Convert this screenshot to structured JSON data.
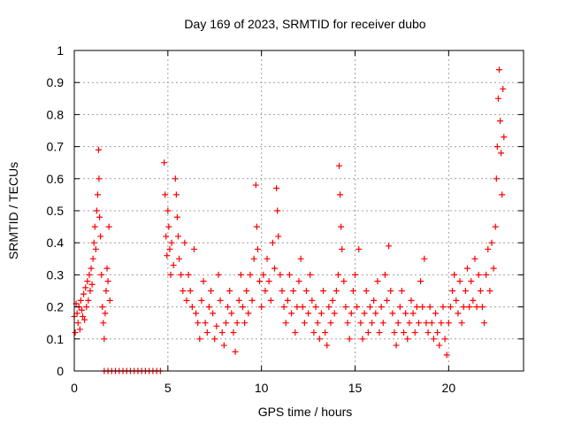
{
  "chart_data": {
    "type": "scatter",
    "title": "Day 169 of 2023, SRMTID for receiver dubo",
    "xlabel": "GPS time / hours",
    "ylabel": "SRMTID / TECUs",
    "xlim": [
      0,
      24
    ],
    "ylim": [
      0,
      1
    ],
    "xticks": [
      0,
      5,
      10,
      15,
      20
    ],
    "yticks": [
      0,
      0.1,
      0.2,
      0.3,
      0.4,
      0.5,
      0.6,
      0.7,
      0.8,
      0.9,
      1
    ],
    "xtick_labels": [
      "0",
      "5",
      "10",
      "15",
      "20"
    ],
    "ytick_labels": [
      "0",
      "0.1",
      "0.2",
      "0.3",
      "0.4",
      "0.5",
      "0.6",
      "0.7",
      "0.8",
      "0.9",
      "1"
    ],
    "grid": true,
    "marker": "+",
    "series": [
      {
        "name": "SRMTID",
        "color": "#ff0000",
        "points": [
          [
            0.0,
            0.17
          ],
          [
            0.05,
            0.12
          ],
          [
            0.1,
            0.21
          ],
          [
            0.15,
            0.18
          ],
          [
            0.2,
            0.15
          ],
          [
            0.25,
            0.2
          ],
          [
            0.3,
            0.13
          ],
          [
            0.35,
            0.22
          ],
          [
            0.4,
            0.19
          ],
          [
            0.45,
            0.17
          ],
          [
            0.5,
            0.24
          ],
          [
            0.55,
            0.16
          ],
          [
            0.6,
            0.26
          ],
          [
            0.65,
            0.2
          ],
          [
            0.7,
            0.28
          ],
          [
            0.75,
            0.22
          ],
          [
            0.8,
            0.3
          ],
          [
            0.85,
            0.25
          ],
          [
            0.9,
            0.32
          ],
          [
            0.95,
            0.27
          ],
          [
            1.0,
            0.35
          ],
          [
            1.05,
            0.4
          ],
          [
            1.1,
            0.45
          ],
          [
            1.15,
            0.38
          ],
          [
            1.2,
            0.5
          ],
          [
            1.25,
            0.55
          ],
          [
            1.3,
            0.69
          ],
          [
            1.32,
            0.6
          ],
          [
            1.35,
            0.48
          ],
          [
            1.4,
            0.42
          ],
          [
            1.45,
            0.3
          ],
          [
            1.5,
            0.2
          ],
          [
            1.55,
            0.15
          ],
          [
            1.6,
            0.1
          ],
          [
            1.65,
            0.18
          ],
          [
            1.7,
            0.25
          ],
          [
            1.75,
            0.32
          ],
          [
            1.8,
            0.28
          ],
          [
            1.85,
            0.45
          ],
          [
            1.9,
            0.22
          ],
          [
            1.6,
            0.0
          ],
          [
            1.8,
            0.0
          ],
          [
            2.0,
            0.0
          ],
          [
            2.2,
            0.0
          ],
          [
            2.4,
            0.0
          ],
          [
            2.6,
            0.0
          ],
          [
            2.8,
            0.0
          ],
          [
            3.0,
            0.0
          ],
          [
            3.2,
            0.0
          ],
          [
            3.4,
            0.0
          ],
          [
            3.6,
            0.0
          ],
          [
            3.8,
            0.0
          ],
          [
            4.0,
            0.0
          ],
          [
            4.2,
            0.0
          ],
          [
            4.4,
            0.0
          ],
          [
            4.6,
            0.0
          ],
          [
            4.8,
            0.65
          ],
          [
            4.85,
            0.55
          ],
          [
            4.9,
            0.42
          ],
          [
            4.95,
            0.36
          ],
          [
            5.0,
            0.5
          ],
          [
            5.05,
            0.45
          ],
          [
            5.1,
            0.38
          ],
          [
            5.15,
            0.3
          ],
          [
            5.2,
            0.4
          ],
          [
            5.3,
            0.33
          ],
          [
            5.4,
            0.6
          ],
          [
            5.45,
            0.55
          ],
          [
            5.5,
            0.48
          ],
          [
            5.55,
            0.42
          ],
          [
            5.6,
            0.35
          ],
          [
            5.7,
            0.3
          ],
          [
            5.8,
            0.25
          ],
          [
            5.9,
            0.4
          ],
          [
            6.0,
            0.22
          ],
          [
            6.1,
            0.3
          ],
          [
            6.2,
            0.25
          ],
          [
            6.3,
            0.2
          ],
          [
            6.4,
            0.38
          ],
          [
            6.5,
            0.18
          ],
          [
            6.6,
            0.15
          ],
          [
            6.7,
            0.1
          ],
          [
            6.8,
            0.22
          ],
          [
            6.9,
            0.28
          ],
          [
            7.0,
            0.15
          ],
          [
            7.1,
            0.12
          ],
          [
            7.2,
            0.2
          ],
          [
            7.3,
            0.25
          ],
          [
            7.4,
            0.18
          ],
          [
            7.5,
            0.1
          ],
          [
            7.6,
            0.14
          ],
          [
            7.7,
            0.3
          ],
          [
            7.8,
            0.22
          ],
          [
            7.9,
            0.12
          ],
          [
            8.0,
            0.08
          ],
          [
            8.1,
            0.15
          ],
          [
            8.2,
            0.2
          ],
          [
            8.3,
            0.25
          ],
          [
            8.4,
            0.18
          ],
          [
            8.5,
            0.12
          ],
          [
            8.6,
            0.06
          ],
          [
            8.7,
            0.15
          ],
          [
            8.8,
            0.22
          ],
          [
            8.9,
            0.3
          ],
          [
            9.0,
            0.2
          ],
          [
            9.1,
            0.15
          ],
          [
            9.2,
            0.25
          ],
          [
            9.3,
            0.18
          ],
          [
            9.4,
            0.3
          ],
          [
            9.5,
            0.22
          ],
          [
            9.6,
            0.35
          ],
          [
            9.7,
            0.58
          ],
          [
            9.75,
            0.45
          ],
          [
            9.8,
            0.38
          ],
          [
            9.9,
            0.28
          ],
          [
            10.0,
            0.2
          ],
          [
            10.1,
            0.3
          ],
          [
            10.2,
            0.25
          ],
          [
            10.3,
            0.35
          ],
          [
            10.4,
            0.28
          ],
          [
            10.5,
            0.22
          ],
          [
            10.6,
            0.4
          ],
          [
            10.7,
            0.32
          ],
          [
            10.8,
            0.57
          ],
          [
            10.85,
            0.5
          ],
          [
            10.9,
            0.42
          ],
          [
            11.0,
            0.3
          ],
          [
            11.1,
            0.25
          ],
          [
            11.2,
            0.2
          ],
          [
            11.3,
            0.15
          ],
          [
            11.4,
            0.22
          ],
          [
            11.5,
            0.3
          ],
          [
            11.6,
            0.18
          ],
          [
            11.7,
            0.25
          ],
          [
            11.8,
            0.12
          ],
          [
            11.9,
            0.2
          ],
          [
            12.0,
            0.28
          ],
          [
            12.1,
            0.35
          ],
          [
            12.2,
            0.2
          ],
          [
            12.3,
            0.15
          ],
          [
            12.4,
            0.25
          ],
          [
            12.5,
            0.18
          ],
          [
            12.6,
            0.3
          ],
          [
            12.7,
            0.22
          ],
          [
            12.8,
            0.12
          ],
          [
            12.9,
            0.2
          ],
          [
            13.0,
            0.15
          ],
          [
            13.1,
            0.1
          ],
          [
            13.2,
            0.18
          ],
          [
            13.3,
            0.25
          ],
          [
            13.4,
            0.12
          ],
          [
            13.5,
            0.08
          ],
          [
            13.6,
            0.2
          ],
          [
            13.7,
            0.15
          ],
          [
            13.8,
            0.22
          ],
          [
            13.9,
            0.18
          ],
          [
            14.0,
            0.25
          ],
          [
            14.1,
            0.3
          ],
          [
            14.15,
            0.64
          ],
          [
            14.2,
            0.55
          ],
          [
            14.25,
            0.45
          ],
          [
            14.3,
            0.38
          ],
          [
            14.4,
            0.28
          ],
          [
            14.5,
            0.2
          ],
          [
            14.6,
            0.15
          ],
          [
            14.7,
            0.1
          ],
          [
            14.8,
            0.18
          ],
          [
            14.9,
            0.25
          ],
          [
            15.0,
            0.3
          ],
          [
            15.1,
            0.2
          ],
          [
            15.2,
            0.38
          ],
          [
            15.3,
            0.15
          ],
          [
            15.4,
            0.1
          ],
          [
            15.5,
            0.18
          ],
          [
            15.6,
            0.25
          ],
          [
            15.7,
            0.12
          ],
          [
            15.8,
            0.2
          ],
          [
            15.9,
            0.15
          ],
          [
            16.0,
            0.22
          ],
          [
            16.1,
            0.18
          ],
          [
            16.2,
            0.28
          ],
          [
            16.3,
            0.12
          ],
          [
            16.4,
            0.2
          ],
          [
            16.5,
            0.15
          ],
          [
            16.6,
            0.3
          ],
          [
            16.7,
            0.22
          ],
          [
            16.8,
            0.39
          ],
          [
            16.9,
            0.25
          ],
          [
            17.0,
            0.18
          ],
          [
            17.1,
            0.12
          ],
          [
            17.2,
            0.08
          ],
          [
            17.3,
            0.15
          ],
          [
            17.4,
            0.2
          ],
          [
            17.5,
            0.25
          ],
          [
            17.6,
            0.12
          ],
          [
            17.7,
            0.18
          ],
          [
            17.8,
            0.1
          ],
          [
            17.9,
            0.15
          ],
          [
            18.0,
            0.22
          ],
          [
            18.1,
            0.18
          ],
          [
            18.2,
            0.12
          ],
          [
            18.3,
            0.2
          ],
          [
            18.4,
            0.15
          ],
          [
            18.5,
            0.28
          ],
          [
            18.6,
            0.2
          ],
          [
            18.7,
            0.35
          ],
          [
            18.8,
            0.15
          ],
          [
            18.9,
            0.12
          ],
          [
            19.0,
            0.2
          ],
          [
            19.1,
            0.15
          ],
          [
            19.2,
            0.1
          ],
          [
            19.3,
            0.18
          ],
          [
            19.4,
            0.12
          ],
          [
            19.5,
            0.08
          ],
          [
            19.6,
            0.15
          ],
          [
            19.7,
            0.2
          ],
          [
            19.8,
            0.1
          ],
          [
            19.9,
            0.05
          ],
          [
            20.0,
            0.15
          ],
          [
            20.1,
            0.2
          ],
          [
            20.2,
            0.25
          ],
          [
            20.3,
            0.3
          ],
          [
            20.4,
            0.22
          ],
          [
            20.5,
            0.18
          ],
          [
            20.6,
            0.28
          ],
          [
            20.7,
            0.15
          ],
          [
            20.8,
            0.2
          ],
          [
            20.9,
            0.25
          ],
          [
            21.0,
            0.32
          ],
          [
            21.1,
            0.2
          ],
          [
            21.2,
            0.28
          ],
          [
            21.3,
            0.22
          ],
          [
            21.4,
            0.35
          ],
          [
            21.5,
            0.2
          ],
          [
            21.6,
            0.3
          ],
          [
            21.7,
            0.25
          ],
          [
            21.8,
            0.2
          ],
          [
            21.9,
            0.15
          ],
          [
            22.0,
            0.3
          ],
          [
            22.1,
            0.38
          ],
          [
            22.2,
            0.25
          ],
          [
            22.3,
            0.4
          ],
          [
            22.4,
            0.32
          ],
          [
            22.5,
            0.45
          ],
          [
            22.55,
            0.6
          ],
          [
            22.6,
            0.7
          ],
          [
            22.65,
            0.85
          ],
          [
            22.7,
            0.94
          ],
          [
            22.75,
            0.78
          ],
          [
            22.8,
            0.68
          ],
          [
            22.85,
            0.55
          ],
          [
            22.9,
            0.88
          ],
          [
            22.95,
            0.73
          ]
        ]
      }
    ]
  }
}
